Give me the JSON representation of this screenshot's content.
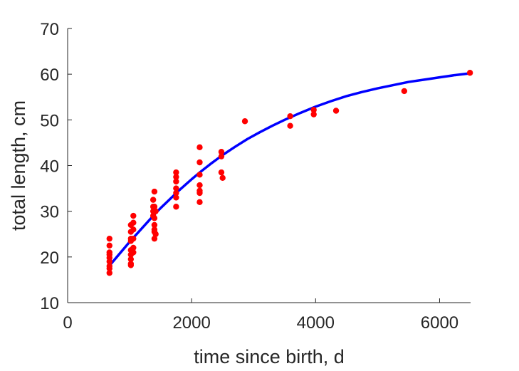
{
  "chart_data": {
    "type": "scatter",
    "xlabel": "time since birth, d",
    "ylabel": "total length, cm",
    "xlim": [
      0,
      6500
    ],
    "ylim": [
      10,
      70
    ],
    "xticks": [
      0,
      2000,
      4000,
      6000
    ],
    "xtick_labels": [
      "0",
      "2000",
      "4000",
      "6000"
    ],
    "yticks": [
      10,
      20,
      30,
      40,
      50,
      60,
      70
    ],
    "ytick_labels": [
      "10",
      "20",
      "30",
      "40",
      "50",
      "60",
      "70"
    ],
    "grid": false,
    "series": [
      {
        "kind": "scatter",
        "color": "#ff0000",
        "points": [
          [
            675,
            24.0
          ],
          [
            675,
            22.5
          ],
          [
            675,
            21.0
          ],
          [
            675,
            20.5
          ],
          [
            675,
            19.8
          ],
          [
            675,
            19.0
          ],
          [
            675,
            18.0
          ],
          [
            675,
            17.5
          ],
          [
            675,
            16.5
          ],
          [
            1020,
            27.0
          ],
          [
            1020,
            25.5
          ],
          [
            1020,
            24.0
          ],
          [
            1020,
            23.5
          ],
          [
            1020,
            21.5
          ],
          [
            1020,
            20.5
          ],
          [
            1020,
            19.5
          ],
          [
            1020,
            18.5
          ],
          [
            1020,
            18.2
          ],
          [
            1060,
            29.0
          ],
          [
            1060,
            27.5
          ],
          [
            1060,
            26.0
          ],
          [
            1060,
            24.0
          ],
          [
            1060,
            22.0
          ],
          [
            1060,
            21.0
          ],
          [
            1380,
            32.5
          ],
          [
            1380,
            31.0
          ],
          [
            1380,
            30.0
          ],
          [
            1380,
            29.0
          ],
          [
            1400,
            34.3
          ],
          [
            1400,
            31.0
          ],
          [
            1400,
            28.5
          ],
          [
            1400,
            27.0
          ],
          [
            1400,
            26.0
          ],
          [
            1400,
            25.5
          ],
          [
            1400,
            24.0
          ],
          [
            1420,
            30.0
          ],
          [
            1420,
            25.0
          ],
          [
            1750,
            38.5
          ],
          [
            1750,
            37.5
          ],
          [
            1750,
            36.5
          ],
          [
            1750,
            35.0
          ],
          [
            1750,
            34.0
          ],
          [
            1750,
            33.0
          ],
          [
            1750,
            31.0
          ],
          [
            2130,
            44.0
          ],
          [
            2130,
            40.7
          ],
          [
            2130,
            38.0
          ],
          [
            2130,
            35.7
          ],
          [
            2130,
            34.5
          ],
          [
            2130,
            34.0
          ],
          [
            2130,
            32.0
          ],
          [
            2480,
            43.0
          ],
          [
            2480,
            42.0
          ],
          [
            2480,
            38.5
          ],
          [
            2500,
            37.3
          ],
          [
            2860,
            49.7
          ],
          [
            3590,
            50.8
          ],
          [
            3590,
            48.7
          ],
          [
            3970,
            52.2
          ],
          [
            3970,
            51.2
          ],
          [
            4330,
            52.0
          ],
          [
            5430,
            56.3
          ],
          [
            6490,
            60.3
          ]
        ]
      },
      {
        "kind": "line",
        "color": "#0000ff",
        "x": [
          700,
          800,
          900,
          1000,
          1100,
          1200,
          1300,
          1400,
          1500,
          1600,
          1700,
          1800,
          1900,
          2000,
          2150,
          2300,
          2500,
          2700,
          2900,
          3100,
          3300,
          3500,
          3750,
          4000,
          4250,
          4500,
          4750,
          5000,
          5250,
          5500,
          5750,
          6000,
          6250,
          6500
        ],
        "y": [
          18.5,
          20.1,
          21.7,
          23.3,
          24.8,
          26.3,
          27.8,
          29.3,
          30.7,
          32.0,
          33.3,
          34.6,
          35.8,
          37.0,
          38.7,
          40.3,
          42.3,
          44.1,
          45.8,
          47.3,
          48.7,
          50.0,
          51.5,
          52.9,
          54.1,
          55.2,
          56.1,
          56.9,
          57.6,
          58.3,
          58.8,
          59.3,
          59.8,
          60.2
        ]
      }
    ]
  }
}
